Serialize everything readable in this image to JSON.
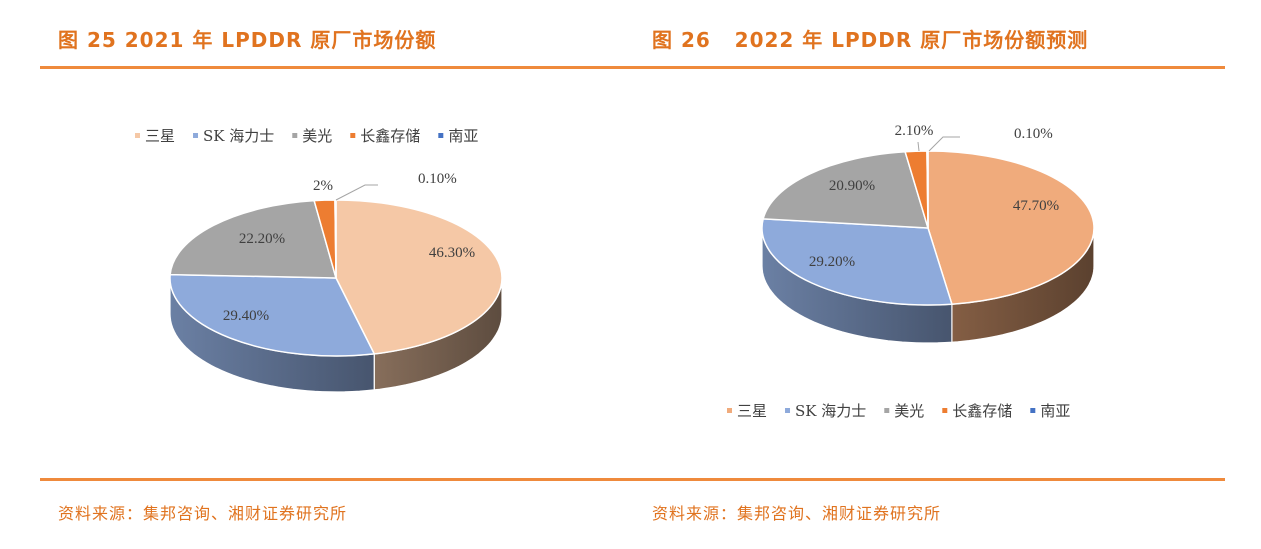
{
  "left": {
    "title": "图 25 2021 年 LPDDR 原厂市场份额",
    "source": "资料来源：集邦咨询、湘财证券研究所"
  },
  "right": {
    "title": "图 26   2022 年 LPDDR 原厂市场份额预测",
    "source": "资料来源：集邦咨询、湘财证券研究所"
  },
  "chart_data": [
    {
      "type": "pie",
      "style": "3d",
      "legend_position": "top",
      "categories": [
        "三星",
        "SK 海力士",
        "美光",
        "长鑫存储",
        "南亚"
      ],
      "values": [
        46.3,
        29.4,
        22.2,
        2,
        0.1
      ],
      "labels": [
        "46.30%",
        "29.40%",
        "22.20%",
        "2%",
        "0.10%"
      ],
      "colors": [
        "#f5c8a6",
        "#8eaadb",
        "#a5a5a5",
        "#ed7d31",
        "#4472c4"
      ]
    },
    {
      "type": "pie",
      "style": "3d",
      "legend_position": "bottom",
      "categories": [
        "三星",
        "SK 海力士",
        "美光",
        "长鑫存储",
        "南亚"
      ],
      "values": [
        47.7,
        29.2,
        20.9,
        2.1,
        0.1
      ],
      "labels": [
        "47.70%",
        "29.20%",
        "20.90%",
        "2.10%",
        "0.10%"
      ],
      "colors": [
        "#f0ab7c",
        "#8eaadb",
        "#a5a5a5",
        "#ed7d31",
        "#4472c4"
      ]
    }
  ]
}
